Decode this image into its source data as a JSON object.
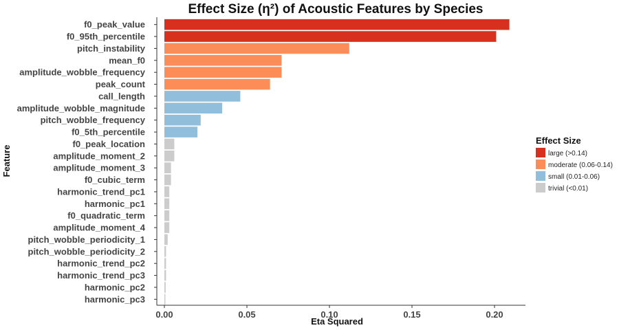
{
  "chart_data": {
    "type": "bar",
    "orientation": "horizontal",
    "title": "Effect Size (η²) of Acoustic Features by Species",
    "xlabel": "Eta Squared",
    "ylabel": "Feature",
    "xlim": [
      0,
      0.22
    ],
    "xticks": [
      "0.00",
      "0.05",
      "0.10",
      "0.15",
      "0.20"
    ],
    "xtick_values": [
      0,
      0.05,
      0.1,
      0.15,
      0.2
    ],
    "grid": false,
    "legend": {
      "title": "Effect Size",
      "position": "right",
      "items": [
        {
          "key": "large",
          "label": "large (>0.14)",
          "color": "#d7301f"
        },
        {
          "key": "moderate",
          "label": "moderate (0.06-0.14)",
          "color": "#fc8d59"
        },
        {
          "key": "small",
          "label": "small (0.01-0.06)",
          "color": "#91bfdb"
        },
        {
          "key": "trivial",
          "label": "trivial (<0.01)",
          "color": "#cccccc"
        }
      ]
    },
    "categories": [
      "f0_peak_value",
      "f0_95th_percentile",
      "pitch_instability",
      "mean_f0",
      "amplitude_wobble_frequency",
      "peak_count",
      "call_length",
      "amplitude_wobble_magnitude",
      "pitch_wobble_frequency",
      "f0_5th_percentile",
      "f0_peak_location",
      "amplitude_moment_2",
      "amplitude_moment_3",
      "f0_cubic_term",
      "harmonic_trend_pc1",
      "harmonic_pc1",
      "f0_quadratic_term",
      "amplitude_moment_4",
      "pitch_wobble_periodicity_1",
      "pitch_wobble_periodicity_2",
      "harmonic_trend_pc2",
      "harmonic_trend_pc3",
      "harmonic_pc2",
      "harmonic_pc3"
    ],
    "values": [
      0.209,
      0.201,
      0.112,
      0.071,
      0.071,
      0.064,
      0.046,
      0.035,
      0.022,
      0.02,
      0.006,
      0.006,
      0.004,
      0.004,
      0.003,
      0.003,
      0.003,
      0.003,
      0.002,
      0.001,
      0.001,
      0.001,
      0.0008,
      0.0006
    ],
    "effect_class": [
      "large",
      "large",
      "moderate",
      "moderate",
      "moderate",
      "moderate",
      "small",
      "small",
      "small",
      "small",
      "trivial",
      "trivial",
      "trivial",
      "trivial",
      "trivial",
      "trivial",
      "trivial",
      "trivial",
      "trivial",
      "trivial",
      "trivial",
      "trivial",
      "trivial",
      "trivial"
    ]
  }
}
